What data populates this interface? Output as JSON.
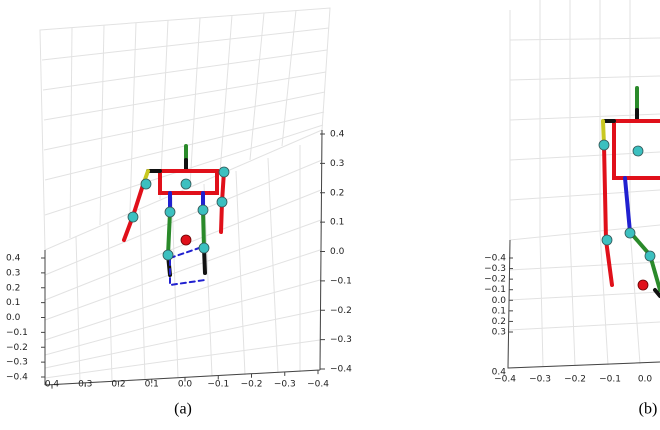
{
  "panels": [
    {
      "caption": "(a)",
      "right_axis": [
        "0.4",
        "0.3",
        "0.2",
        "0.1",
        "0.0",
        "−0.1",
        "−0.2",
        "−0.3",
        "−0.4"
      ],
      "bottom_axis": [
        "0.4",
        "0.3",
        "0.2",
        "0.1",
        "0.0",
        "−0.1",
        "−0.2",
        "−0.3",
        "−0.4"
      ],
      "left_axis": [
        "0.4",
        "0.3",
        "0.2",
        "0.1",
        "0.0",
        "−0.1",
        "−0.2",
        "−0.3",
        "−0.4"
      ]
    },
    {
      "caption": "(b)",
      "left_axis": [
        "−0.4",
        "−0.3",
        "−0.2",
        "−0.1",
        "0.0",
        "0.1",
        "0.2",
        "0.3",
        "0.4"
      ],
      "bottom_axis": [
        "−0.4",
        "−0.3",
        "−0.2",
        "−0.1",
        "0.0"
      ]
    }
  ]
}
